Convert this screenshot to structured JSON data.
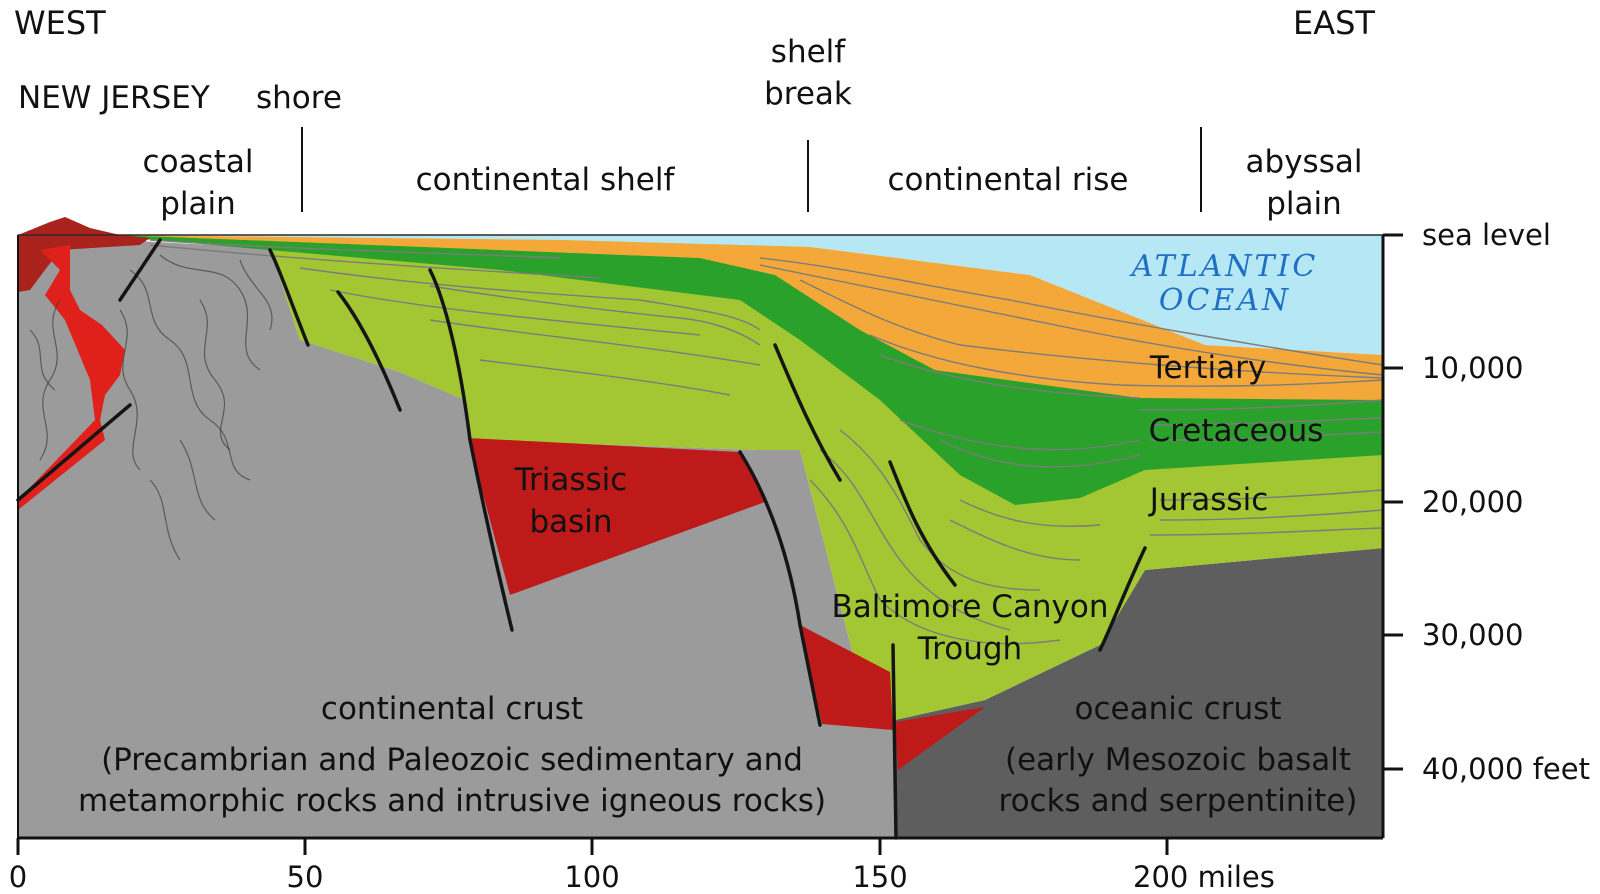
{
  "directions": {
    "west": "WEST",
    "east": "EAST"
  },
  "regions": {
    "new_jersey": "NEW JERSEY",
    "shore": "shore",
    "shelf_break": [
      "shelf",
      "break"
    ],
    "coastal_plain": [
      "coastal",
      "plain"
    ],
    "continental_shelf": "continental shelf",
    "continental_rise": "continental rise",
    "abyssal_plain": [
      "abyssal",
      "plain"
    ]
  },
  "ocean_label": [
    "ATLANTIC",
    "OCEAN"
  ],
  "layers": {
    "tertiary": "Tertiary",
    "cretaceous": "Cretaceous",
    "jurassic": "Jurassic",
    "triassic_basin": [
      "Triassic",
      "basin"
    ],
    "baltimore_canyon": [
      "Baltimore Canyon",
      "Trough"
    ]
  },
  "crust": {
    "continental_title": "continental crust",
    "continental_desc": [
      "(Precambrian and Paleozoic sedimentary and",
      "metamorphic rocks and intrusive igneous rocks)"
    ],
    "oceanic_title": "oceanic crust",
    "oceanic_desc": [
      "(early Mesozoic basalt",
      "rocks and serpentinite)"
    ]
  },
  "depth_axis": [
    "sea level",
    "10,000",
    "20,000",
    "30,000",
    "40,000 feet"
  ],
  "distance_axis": [
    "0",
    "50",
    "100",
    "150",
    "200 miles"
  ],
  "colors": {
    "ocean": "#b5e8f4",
    "tertiary": "#f5a83a",
    "cretaceous": "#2aa12a",
    "jurassic": "#a3c732",
    "triassic": "#bf1a1a",
    "continental_crust": "#9b9b9b",
    "oceanic_crust": "#5e5e5e",
    "intrusive": "#e0201a"
  }
}
